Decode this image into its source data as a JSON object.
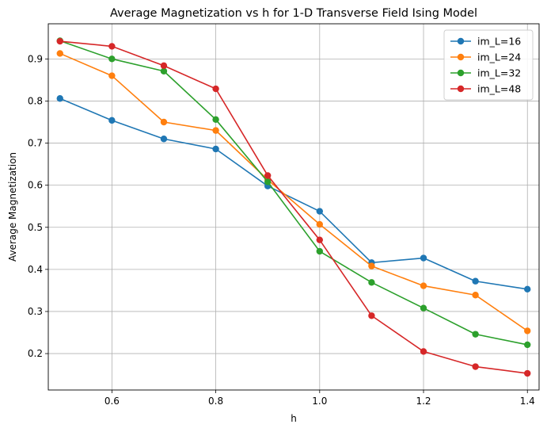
{
  "chart_data": {
    "type": "line",
    "title": "Average Magnetization vs h for 1-D Transverse Field Ising Model",
    "xlabel": "h",
    "ylabel": "Average Magnetization",
    "xlim": [
      0.4775,
      1.4225
    ],
    "ylim": [
      0.1135,
      0.9835
    ],
    "xticks": [
      0.6,
      0.8,
      1.0,
      1.2,
      1.4
    ],
    "xtick_labels": [
      "0.6",
      "0.8",
      "1.0",
      "1.2",
      "1.4"
    ],
    "yticks": [
      0.2,
      0.3,
      0.4,
      0.5,
      0.6,
      0.7,
      0.8,
      0.9
    ],
    "ytick_labels": [
      "0.2",
      "0.3",
      "0.4",
      "0.5",
      "0.6",
      "0.7",
      "0.8",
      "0.9"
    ],
    "grid": true,
    "legend_position": "top-right",
    "x": [
      0.5,
      0.6,
      0.7,
      0.8,
      0.9,
      1.0,
      1.1,
      1.2,
      1.3,
      1.4
    ],
    "series": [
      {
        "name": "im_L=16",
        "color": "#1f77b4",
        "values": [
          0.806,
          0.754,
          0.71,
          0.686,
          0.598,
          0.538,
          0.416,
          0.427,
          0.372,
          0.353
        ]
      },
      {
        "name": "im_L=24",
        "color": "#ff7f0e",
        "values": [
          0.913,
          0.86,
          0.75,
          0.73,
          0.613,
          0.507,
          0.408,
          0.361,
          0.339,
          0.254
        ]
      },
      {
        "name": "im_L=32",
        "color": "#2ca02c",
        "values": [
          0.943,
          0.9,
          0.871,
          0.756,
          0.608,
          0.443,
          0.369,
          0.308,
          0.246,
          0.221
        ]
      },
      {
        "name": "im_L=48",
        "color": "#d62728",
        "values": [
          0.942,
          0.93,
          0.884,
          0.829,
          0.623,
          0.47,
          0.29,
          0.205,
          0.169,
          0.153
        ]
      }
    ]
  }
}
